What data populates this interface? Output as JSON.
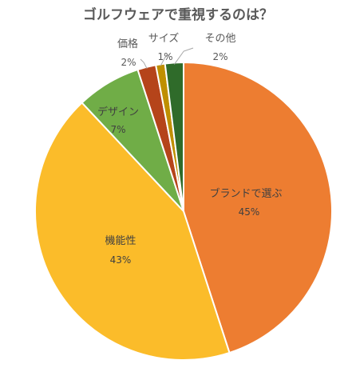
{
  "chart_data": {
    "type": "pie",
    "title": "ゴルフウェアで重視するのは？",
    "slices": [
      {
        "name": "ブランドで選ぶ",
        "value": 45,
        "label": "45%",
        "color": "#ED7D31"
      },
      {
        "name": "機能性",
        "value": 43,
        "label": "43%",
        "color": "#FBBC2A"
      },
      {
        "name": "デザイン",
        "value": 7,
        "label": "7%",
        "color": "#70AD47"
      },
      {
        "name": "価格",
        "value": 2,
        "label": "2%",
        "color": "#B5441A"
      },
      {
        "name": "サイズ",
        "value": 1,
        "label": "1%",
        "color": "#BF8F00"
      },
      {
        "name": "その他",
        "value": 2,
        "label": "2%",
        "color": "#2F6B2A"
      }
    ],
    "start_angle_deg": 0,
    "direction": "clockwise"
  }
}
